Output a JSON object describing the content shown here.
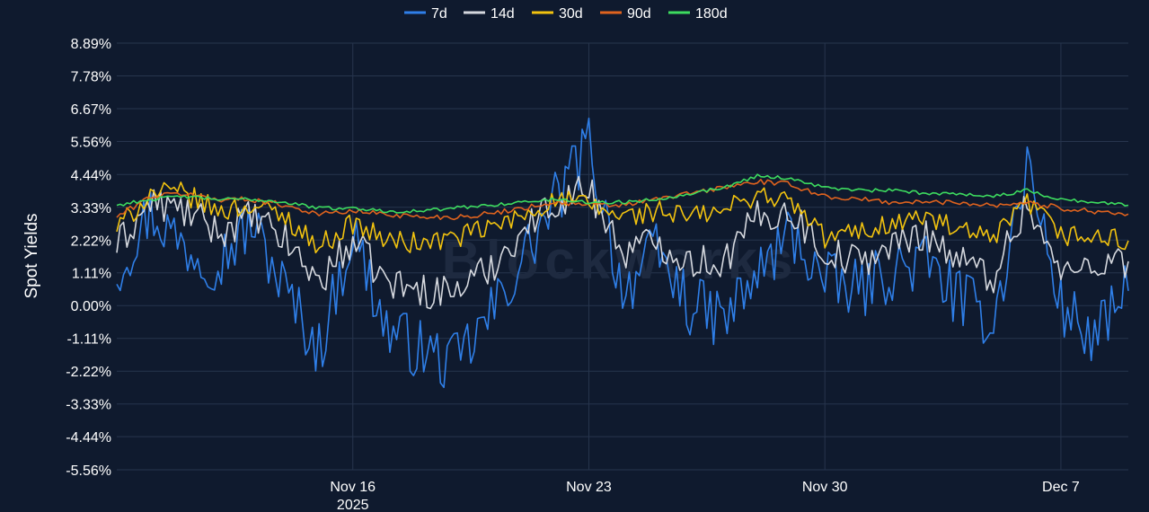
{
  "chart_data": {
    "type": "line",
    "title": "",
    "ylabel": "Spot Yields",
    "xlabel": "",
    "watermark": "Blockworks",
    "grid": true,
    "legend_placement": "top-center",
    "ylim": [
      -5.56,
      8.89
    ],
    "y_ticks": [
      "8.89%",
      "7.78%",
      "6.67%",
      "5.56%",
      "4.44%",
      "3.33%",
      "2.22%",
      "1.11%",
      "0.00%",
      "-1.11%",
      "-2.22%",
      "-3.33%",
      "-4.44%",
      "-5.56%"
    ],
    "y_tick_values": [
      8.89,
      7.78,
      6.67,
      5.56,
      4.44,
      3.33,
      2.22,
      1.11,
      0.0,
      -1.11,
      -2.22,
      -3.33,
      -4.44,
      -5.56
    ],
    "xlim": [
      "2025-11-09",
      "2025-12-09"
    ],
    "x_ticks": [
      {
        "date": "2025-11-16",
        "label": "Nov 16",
        "sublabel": "2025"
      },
      {
        "date": "2025-11-23",
        "label": "Nov 23",
        "sublabel": ""
      },
      {
        "date": "2025-11-30",
        "label": "Nov 30",
        "sublabel": ""
      },
      {
        "date": "2025-12-07",
        "label": "Dec 7",
        "sublabel": ""
      }
    ],
    "x": [
      "2025-11-09",
      "2025-11-10",
      "2025-11-11",
      "2025-11-12",
      "2025-11-13",
      "2025-11-14",
      "2025-11-15",
      "2025-11-16",
      "2025-11-17",
      "2025-11-18",
      "2025-11-19",
      "2025-11-20",
      "2025-11-21",
      "2025-11-22",
      "2025-11-23",
      "2025-11-24",
      "2025-11-25",
      "2025-11-26",
      "2025-11-27",
      "2025-11-28",
      "2025-11-29",
      "2025-11-30",
      "2025-12-01",
      "2025-12-02",
      "2025-12-03",
      "2025-12-04",
      "2025-12-05",
      "2025-12-06",
      "2025-12-07",
      "2025-12-08",
      "2025-12-09"
    ],
    "series": [
      {
        "name": "7d",
        "color": "#2f7fe8",
        "values": [
          1.2,
          3.2,
          2.0,
          1.5,
          2.8,
          0.5,
          -1.5,
          2.5,
          -0.8,
          -1.5,
          -2.0,
          -0.5,
          1.5,
          3.5,
          5.5,
          0.5,
          1.8,
          0.0,
          -0.5,
          1.0,
          2.5,
          0.8,
          0.5,
          1.2,
          1.5,
          0.2,
          -0.5,
          4.8,
          0.0,
          -1.2,
          0.5
        ]
      },
      {
        "name": "14d",
        "color": "#d5d8de",
        "values": [
          2.0,
          3.5,
          3.2,
          2.5,
          3.0,
          2.2,
          0.8,
          2.2,
          0.8,
          0.5,
          0.5,
          1.2,
          2.5,
          3.5,
          4.0,
          1.8,
          2.2,
          1.5,
          1.5,
          3.0,
          3.2,
          1.8,
          1.5,
          2.0,
          2.5,
          1.5,
          1.0,
          3.5,
          1.0,
          1.5,
          1.5
        ]
      },
      {
        "name": "30d",
        "color": "#f2c30f",
        "values": [
          2.6,
          3.8,
          3.8,
          3.2,
          3.4,
          3.0,
          2.0,
          2.8,
          2.2,
          2.1,
          2.3,
          2.6,
          3.0,
          3.6,
          3.4,
          3.0,
          3.2,
          3.0,
          3.2,
          3.8,
          3.5,
          2.3,
          2.5,
          2.8,
          3.0,
          2.5,
          2.2,
          3.5,
          2.4,
          2.3,
          2.2
        ]
      },
      {
        "name": "90d",
        "color": "#e0631e",
        "values": [
          3.0,
          3.7,
          3.8,
          3.6,
          3.6,
          3.4,
          3.1,
          3.2,
          3.1,
          3.0,
          3.0,
          3.1,
          3.3,
          3.5,
          3.4,
          3.4,
          3.6,
          3.8,
          4.0,
          4.2,
          4.1,
          3.7,
          3.6,
          3.5,
          3.5,
          3.5,
          3.4,
          3.5,
          3.3,
          3.2,
          3.1
        ]
      },
      {
        "name": "180d",
        "color": "#3ddc5f",
        "values": [
          3.4,
          3.6,
          3.7,
          3.6,
          3.6,
          3.5,
          3.3,
          3.3,
          3.2,
          3.2,
          3.3,
          3.4,
          3.5,
          3.6,
          3.5,
          3.5,
          3.6,
          3.8,
          4.0,
          4.4,
          4.3,
          4.0,
          3.9,
          3.9,
          3.8,
          3.8,
          3.7,
          3.9,
          3.6,
          3.5,
          3.4
        ]
      }
    ]
  }
}
